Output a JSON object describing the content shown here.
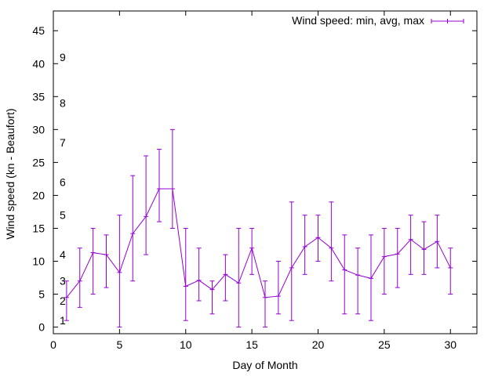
{
  "chart_data": {
    "type": "line",
    "title": "",
    "xlabel": "Day of Month",
    "ylabel": "Wind speed (kn - Beaufort)",
    "xlim": [
      0,
      32
    ],
    "ylim": [
      -1,
      48
    ],
    "xticks": [
      0,
      5,
      10,
      15,
      20,
      25,
      30
    ],
    "yticks": [
      0,
      5,
      10,
      15,
      20,
      25,
      30,
      35,
      40,
      45
    ],
    "grid": false,
    "legend_position": "top-right",
    "beaufort_labels": [
      {
        "label": "1",
        "value": 1
      },
      {
        "label": "2",
        "value": 4
      },
      {
        "label": "3",
        "value": 7
      },
      {
        "label": "4",
        "value": 11
      },
      {
        "label": "5",
        "value": 17
      },
      {
        "label": "6",
        "value": 22
      },
      {
        "label": "7",
        "value": 28
      },
      {
        "label": "8",
        "value": 34
      },
      {
        "label": "9",
        "value": 41
      }
    ],
    "series": [
      {
        "name": "Wind speed: min, avg, max",
        "color": "#9400d3",
        "x": [
          1,
          2,
          3,
          4,
          5,
          6,
          7,
          8,
          9,
          10,
          11,
          12,
          13,
          14,
          15,
          16,
          17,
          18,
          19,
          20,
          21,
          22,
          23,
          24,
          25,
          26,
          27,
          28,
          29,
          30
        ],
        "avg": [
          4.5,
          7,
          11.3,
          11,
          8.3,
          14.2,
          16.8,
          21,
          21,
          6.2,
          7.1,
          5.7,
          8,
          6.7,
          12,
          4.5,
          4.7,
          9,
          12.2,
          13.6,
          12,
          8.7,
          7.9,
          7.4,
          10.7,
          11.1,
          13.3,
          11.8,
          13,
          9
        ],
        "min": [
          1,
          3,
          5,
          6,
          0,
          7,
          11,
          16,
          15,
          1,
          4,
          2,
          4,
          0,
          8,
          0,
          2,
          1,
          8,
          10,
          7,
          2,
          2,
          1,
          5,
          6,
          8,
          8,
          9,
          5
        ],
        "max": [
          7,
          12,
          15,
          14,
          17,
          23,
          26,
          27,
          30,
          15,
          12,
          7,
          11,
          15,
          15,
          7,
          10,
          19,
          17,
          17,
          19,
          14,
          12,
          14,
          15,
          15,
          17,
          16,
          17,
          12
        ]
      }
    ]
  }
}
